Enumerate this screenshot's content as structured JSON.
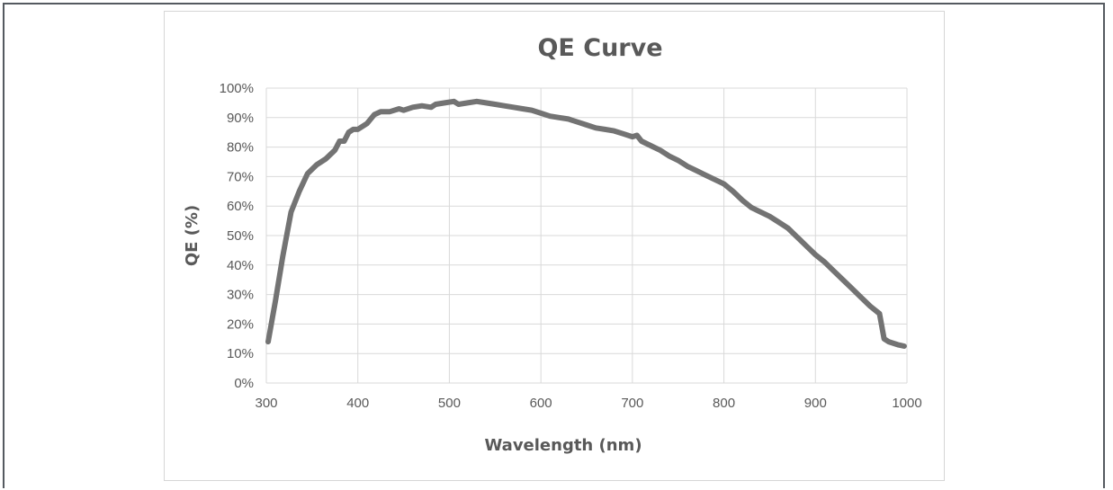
{
  "chart_data": {
    "type": "line",
    "title": "QE Curve",
    "xlabel": "Wavelength (nm)",
    "ylabel": "QE (%)",
    "xlim": [
      300,
      1000
    ],
    "ylim": [
      0,
      100
    ],
    "x_ticks": [
      "300",
      "400",
      "500",
      "600",
      "700",
      "800",
      "900",
      "1000"
    ],
    "y_ticks": [
      "0%",
      "10%",
      "20%",
      "30%",
      "40%",
      "50%",
      "60%",
      "70%",
      "80%",
      "90%",
      "100%"
    ],
    "grid": true,
    "legend": "none",
    "series": [
      {
        "color": "#737373",
        "x": [
          302,
          310,
          318,
          327,
          336,
          345,
          355,
          365,
          375,
          380,
          385,
          390,
          395,
          400,
          410,
          418,
          425,
          435,
          445,
          450,
          460,
          470,
          480,
          485,
          495,
          505,
          510,
          520,
          530,
          540,
          550,
          560,
          570,
          580,
          590,
          600,
          610,
          620,
          630,
          640,
          650,
          660,
          670,
          680,
          690,
          700,
          705,
          710,
          720,
          730,
          740,
          750,
          760,
          770,
          780,
          790,
          800,
          810,
          820,
          830,
          840,
          850,
          860,
          870,
          880,
          890,
          900,
          910,
          920,
          930,
          940,
          950,
          960,
          970,
          975,
          980,
          990,
          997
        ],
        "y": [
          14,
          28,
          43,
          58,
          65,
          71,
          74,
          76,
          79,
          82,
          82,
          85,
          86,
          86,
          88,
          91,
          92,
          92,
          93,
          92.5,
          93.5,
          94,
          93.5,
          94.5,
          95,
          95.5,
          94.5,
          95,
          95.5,
          95,
          94.5,
          94,
          93.5,
          93,
          92.5,
          91.5,
          90.5,
          90,
          89.5,
          88.5,
          87.5,
          86.5,
          86,
          85.5,
          84.5,
          83.5,
          84,
          82,
          80.5,
          79,
          77,
          75.5,
          73.5,
          72,
          70.5,
          69,
          67.5,
          65,
          62,
          59.5,
          58,
          56.5,
          54.5,
          52.5,
          49.5,
          46.5,
          43.5,
          41,
          38,
          35,
          32,
          29,
          26,
          23.5,
          15,
          14,
          13,
          12.5
        ]
      }
    ]
  }
}
